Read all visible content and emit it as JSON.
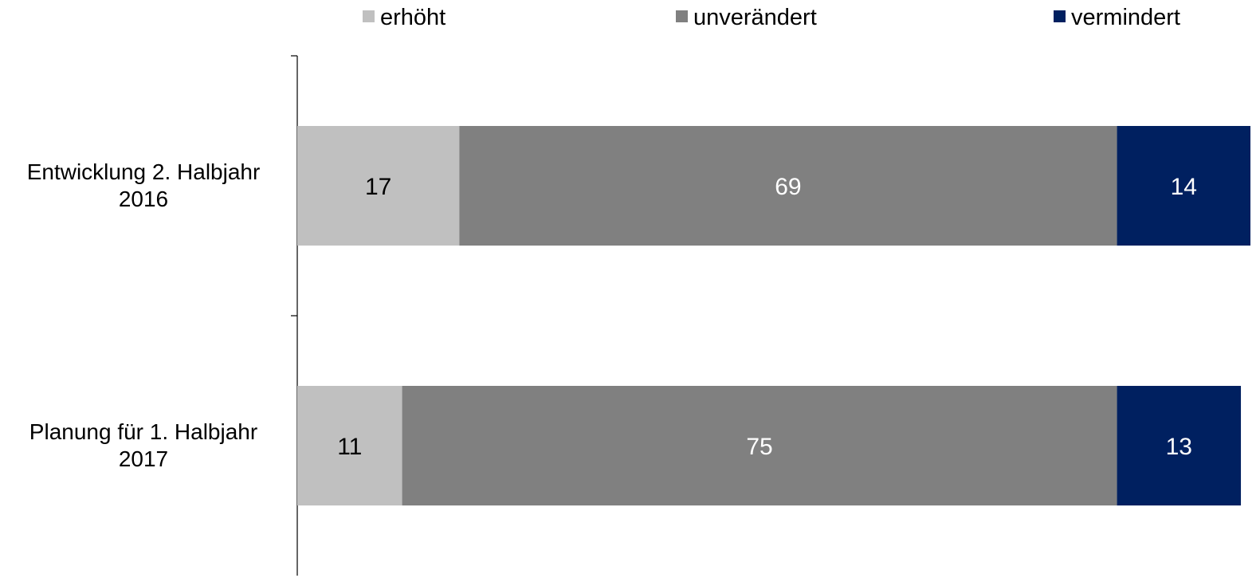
{
  "chart_data": {
    "type": "bar",
    "orientation": "horizontal",
    "stacked": true,
    "categories": [
      [
        "Entwicklung 2. Halbjahr",
        "2016"
      ],
      [
        "Planung für 1. Halbjahr",
        "2017"
      ]
    ],
    "series": [
      {
        "name": "erhöht",
        "values": [
          17,
          11
        ],
        "color": "#c0c0c0",
        "label_color": "#000000"
      },
      {
        "name": "unverändert",
        "values": [
          69,
          75
        ],
        "color": "#808080",
        "label_color": "#ffffff"
      },
      {
        "name": "vermindert",
        "values": [
          14,
          13
        ],
        "color": "#002060",
        "label_color": "#ffffff"
      }
    ],
    "xlim": [
      0,
      100
    ],
    "legend_position": "top",
    "grid": false,
    "title": "",
    "xlabel": "",
    "ylabel": ""
  }
}
